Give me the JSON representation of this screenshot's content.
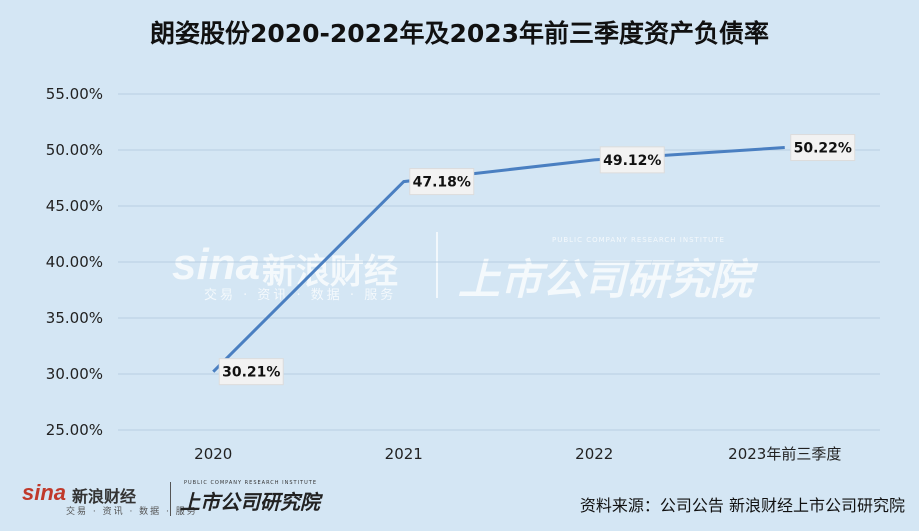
{
  "chart_data": {
    "type": "line",
    "title": "朗姿股份2020-2022年及2023年前三季度资产负债率",
    "categories": [
      "2020",
      "2021",
      "2022",
      "2023年前三季度"
    ],
    "values": [
      30.21,
      47.18,
      49.12,
      50.22
    ],
    "data_labels": [
      "30.21%",
      "47.18%",
      "49.12%",
      "50.22%"
    ],
    "y_ticks": [
      "25.00%",
      "30.00%",
      "35.00%",
      "40.00%",
      "45.00%",
      "50.00%",
      "55.00%"
    ],
    "ylim": [
      25,
      55
    ],
    "grid": "horizontal",
    "line_color": "#4a7fc1",
    "label_bg": "#f2f2f2",
    "xlabel": "",
    "ylabel": ""
  },
  "watermark": {
    "sina_logo": "sina",
    "sina_cn": "新浪财经",
    "sina_sub": "交易 · 资讯 · 数据 · 服务",
    "institute_cn": "上市公司研究院",
    "institute_en": "PUBLIC COMPANY RESEARCH INSTITUTE"
  },
  "footer": {
    "sina_logo": "sina",
    "sina_cn": "新浪财经",
    "sina_sub": "交易 · 资讯 · 数据 · 服务",
    "institute_cn": "上市公司研究院",
    "institute_en": "PUBLIC COMPANY RESEARCH INSTITUTE",
    "source": "资料来源：公司公告 新浪财经上市公司研究院"
  }
}
